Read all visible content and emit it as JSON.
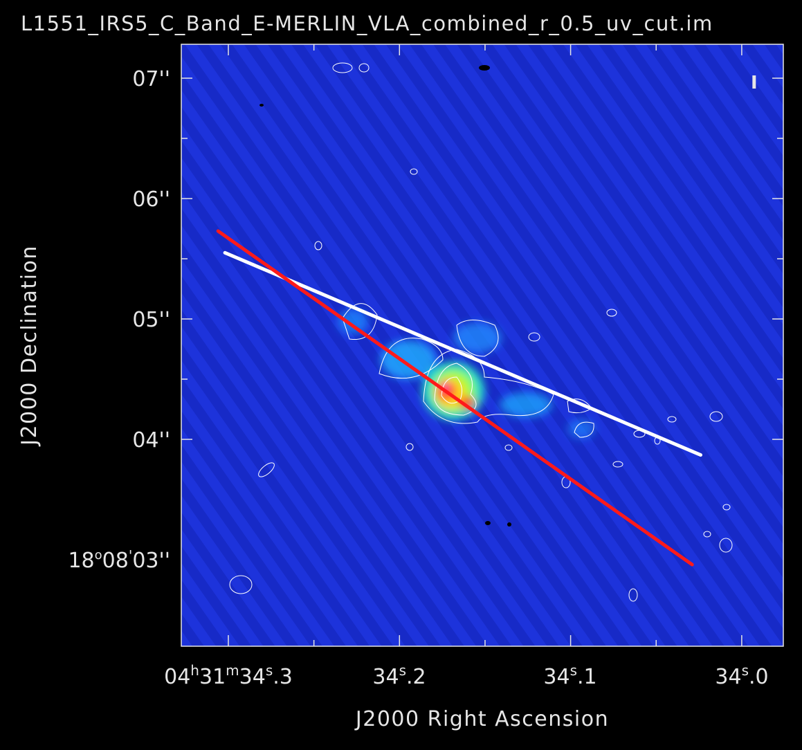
{
  "title": "L1551_IRS5_C_Band_E-MERLIN_VLA_combined_r_0.5_uv_cut.im",
  "stokes_label": "I",
  "axes": {
    "xlabel": "J2000 Right Ascension",
    "ylabel": "J2000 Declination",
    "x_ticks": [
      {
        "h": "04",
        "m": "31",
        "s": "34",
        "frac": ".3",
        "value_s": 34.3
      },
      {
        "s": "34",
        "frac": ".2",
        "value_s": 34.2
      },
      {
        "s": "34",
        "frac": ".1",
        "value_s": 34.1
      },
      {
        "s": "34",
        "frac": ".0",
        "value_s": 34.0
      }
    ],
    "y_ticks": [
      {
        "text": "07''",
        "value_arcsec": 7
      },
      {
        "text": "06''",
        "value_arcsec": 6
      },
      {
        "text": "05''",
        "value_arcsec": 5
      },
      {
        "text": "04''",
        "value_arcsec": 4
      },
      {
        "deg": "18",
        "amin": "08",
        "asec": "03''",
        "value_arcsec": 3
      }
    ]
  },
  "colors": {
    "background": "#1c2fd8",
    "white_line": "#ffffff",
    "red_line": "#ff1a1a",
    "contour": "#ffffff"
  },
  "lines": [
    {
      "name": "white",
      "from": {
        "ra_s": 34.302,
        "dec_arcsec": 5.55
      },
      "to": {
        "ra_s": 34.024,
        "dec_arcsec": 3.87
      }
    },
    {
      "name": "red",
      "from": {
        "ra_s": 34.306,
        "dec_arcsec": 5.73
      },
      "to": {
        "ra_s": 34.029,
        "dec_arcsec": 2.96
      }
    }
  ]
}
